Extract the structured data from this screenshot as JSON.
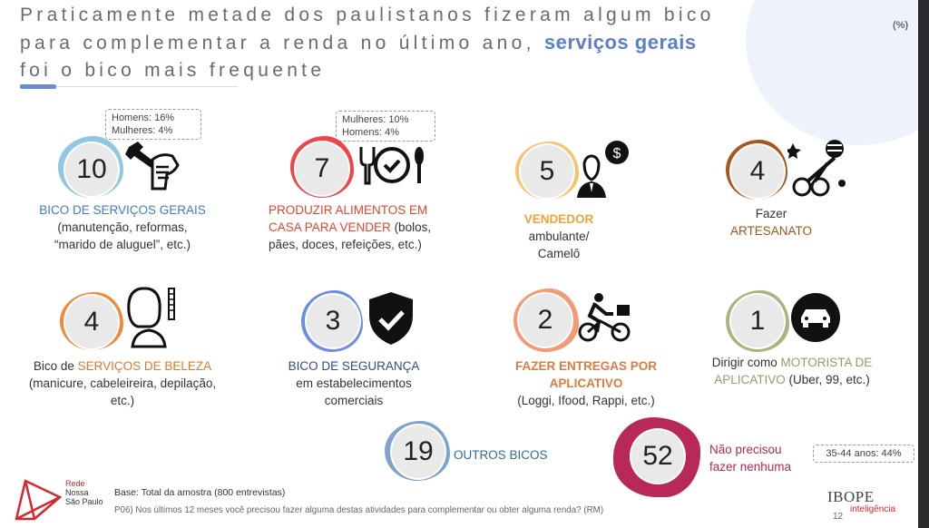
{
  "title": {
    "line1": "Praticamente metade dos paulistanos fizeram algum bico",
    "line2": "para complementar a renda no último ano,",
    "highlight": "serviços gerais",
    "line3": "foi o bico mais frequente"
  },
  "unit_label": "(%)",
  "items": [
    {
      "value": "10",
      "label_colored": "BICO DE SERVIÇOS GERAIS",
      "label_rest": "(manutenção, reformas, “marido de aluguel”, etc.)",
      "icon": "wrench-hand-icon",
      "callout": [
        "Homens: 16%",
        "Mulheres: 4%"
      ]
    },
    {
      "value": "7",
      "label_colored": "PRODUZIR ALIMENTOS EM CASA PARA VENDER",
      "label_rest": "(bolos, pães, doces, refeições, etc.)",
      "icon": "plate-cutlery-icon",
      "callout": [
        "Mulheres: 10%",
        "Homens: 4%"
      ]
    },
    {
      "value": "5",
      "label_colored": "VENDEDOR",
      "label_rest": "ambulante/ Camelô",
      "icon": "salesman-dollar-icon"
    },
    {
      "value": "4",
      "label_prefix": "Fazer",
      "label_colored": "ARTESANATO",
      "icon": "craft-yarn-icon"
    },
    {
      "value": "4",
      "label_prefix": "Bico de",
      "label_colored": "SERVIÇOS DE BELEZA",
      "label_rest": "(manicure, cabeleireira, depilação, etc.)",
      "icon": "hairdresser-icon"
    },
    {
      "value": "3",
      "label_colored": "BICO DE SEGURANÇA",
      "label_rest": "em estabelecimentos comerciais",
      "icon": "security-shield-icon"
    },
    {
      "value": "2",
      "label_colored": "FAZER ENTREGAS POR APLICATIVO",
      "label_rest": "(Loggi, Ifood, Rappi, etc.)",
      "icon": "delivery-bike-icon"
    },
    {
      "value": "1",
      "label_prefix": "Dirigir como",
      "label_colored": "MOTORISTA DE APLICATIVO",
      "label_rest": "(Uber, 99, etc.)",
      "icon": "car-icon"
    },
    {
      "value": "19",
      "label_colored": "OUTROS BICOS"
    },
    {
      "value": "52",
      "label_colored": "Não precisou fazer nenhuma",
      "callout": [
        "35-44 anos: 44%"
      ]
    }
  ],
  "colors": {
    "blue": "#8fc8e0",
    "red": "#f0444a",
    "yellow": "#f5c36a",
    "brown": "#a8561e",
    "orange": "#f08a3a",
    "navy": "#6d8ee0",
    "salmon": "#f39a78",
    "olive": "#a9b57e",
    "teal": "#7fa3c9",
    "pink": "#b8285a"
  },
  "footer": {
    "base_label": "Base:",
    "base_text": "Total da amostra (800 entrevistas)",
    "question": "P06) Nos últimos 12 meses você precisou fazer alguma destas atividades para complementar ou obter alguma renda? (RM)",
    "logo_rede": "Rede",
    "logo_nossa": "Nossa",
    "logo_sp": "São Paulo",
    "page_number": "12",
    "ibope": "IBOPE",
    "ibope_sub": "inteligência"
  }
}
